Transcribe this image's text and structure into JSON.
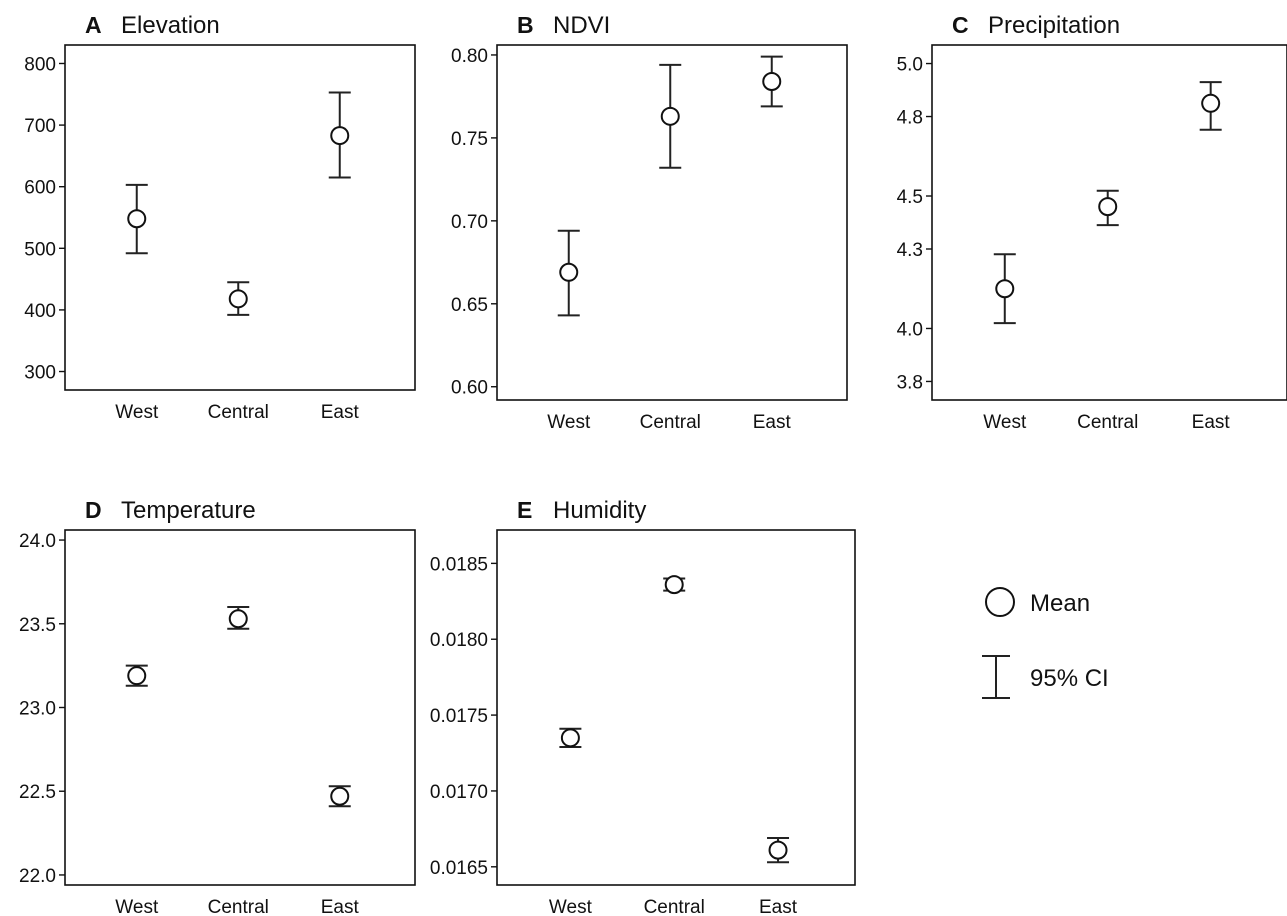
{
  "chart_data": [
    {
      "type": "scatter",
      "panel": "A",
      "title": "Elevation",
      "categories": [
        "West",
        "Central",
        "East"
      ],
      "yticks": [
        "300",
        "400",
        "500",
        "600",
        "700",
        "800"
      ],
      "ylim": [
        270,
        830
      ],
      "series": [
        {
          "mean": [
            548,
            418,
            683
          ],
          "ci_low": [
            492,
            392,
            615
          ],
          "ci_high": [
            603,
            445,
            753
          ]
        }
      ]
    },
    {
      "type": "scatter",
      "panel": "B",
      "title": "NDVI",
      "categories": [
        "West",
        "Central",
        "East"
      ],
      "yticks": [
        "0.60",
        "0.65",
        "0.70",
        "0.75",
        "0.80"
      ],
      "ylim": [
        0.592,
        0.806
      ],
      "series": [
        {
          "mean": [
            0.669,
            0.763,
            0.784
          ],
          "ci_low": [
            0.643,
            0.732,
            0.769
          ],
          "ci_high": [
            0.694,
            0.794,
            0.799
          ]
        }
      ]
    },
    {
      "type": "scatter",
      "panel": "C",
      "title": "Precipitation",
      "categories": [
        "West",
        "Central",
        "East"
      ],
      "yticks": [
        "3.8",
        "4.0",
        "4.3",
        "4.5",
        "4.8",
        "5.0"
      ],
      "ylim": [
        3.73,
        5.07
      ],
      "series": [
        {
          "mean": [
            4.15,
            4.46,
            4.85
          ],
          "ci_low": [
            4.02,
            4.39,
            4.75
          ],
          "ci_high": [
            4.28,
            4.52,
            4.93
          ]
        }
      ]
    },
    {
      "type": "scatter",
      "panel": "D",
      "title": "Temperature",
      "categories": [
        "West",
        "Central",
        "East"
      ],
      "yticks": [
        "22.0",
        "22.5",
        "23.0",
        "23.5",
        "24.0"
      ],
      "ylim": [
        21.94,
        24.06
      ],
      "series": [
        {
          "mean": [
            23.19,
            23.53,
            22.47
          ],
          "ci_low": [
            23.13,
            23.47,
            22.41
          ],
          "ci_high": [
            23.25,
            23.6,
            22.53
          ]
        }
      ]
    },
    {
      "type": "scatter",
      "panel": "E",
      "title": "Humidity",
      "categories": [
        "West",
        "Central",
        "East"
      ],
      "yticks": [
        "0.0165",
        "0.0170",
        "0.0175",
        "0.0180",
        "0.0185"
      ],
      "ylim": [
        0.01638,
        0.01872
      ],
      "series": [
        {
          "mean": [
            0.01735,
            0.01836,
            0.01661
          ],
          "ci_low": [
            0.01729,
            0.01832,
            0.01653
          ],
          "ci_high": [
            0.01741,
            0.0184,
            0.01669
          ]
        }
      ]
    }
  ],
  "legend": {
    "mean_label": "Mean",
    "ci_label": "95% CI"
  }
}
